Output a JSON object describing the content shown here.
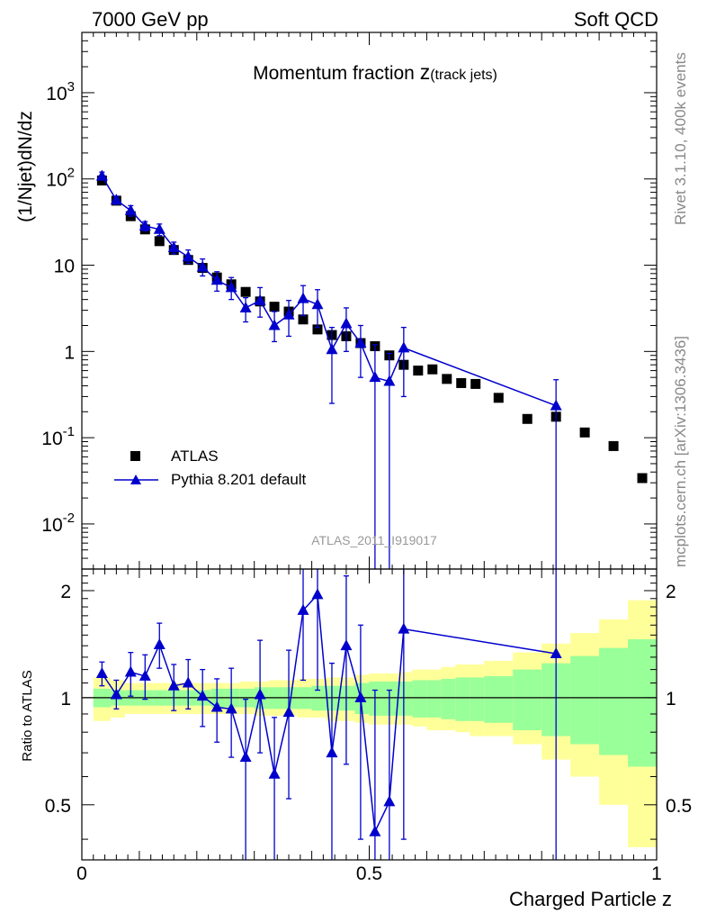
{
  "header": {
    "left": "7000 GeV pp",
    "right": "Soft QCD"
  },
  "side_text": {
    "rivet": "Rivet 3.1.10,  400k events",
    "mcplots": "mcplots.cern.ch [arXiv:1306.3436]"
  },
  "chart_data": [
    {
      "type": "scatter",
      "title_main": "Momentum fraction ",
      "title_z": "z",
      "title_sub": "(track jets)",
      "ylabel": "(1/Njet)dN/dz",
      "xlabel": "Charged Particle z",
      "analysis_id": "ATLAS_2011_I919017",
      "y_scale": "log",
      "xlim": [
        0,
        1
      ],
      "ylim": [
        0.003,
        5000
      ],
      "y_ticks": [
        {
          "value": 0.01,
          "base": "10",
          "exp": "-2"
        },
        {
          "value": 0.1,
          "base": "10",
          "exp": "-1"
        },
        {
          "value": 1,
          "base": "1",
          "exp": ""
        },
        {
          "value": 10,
          "base": "10",
          "exp": ""
        },
        {
          "value": 100,
          "base": "10",
          "exp": "2"
        },
        {
          "value": 1000,
          "base": "10",
          "exp": "3"
        }
      ],
      "x_ticks": [
        {
          "value": 0,
          "label": "0"
        },
        {
          "value": 0.5,
          "label": "0.5"
        },
        {
          "value": 1,
          "label": "1"
        }
      ],
      "legend": {
        "position": "bottom-left"
      },
      "series": [
        {
          "name": "ATLAS",
          "marker": "square",
          "color": "#000000",
          "x": [
            0.035,
            0.06,
            0.085,
            0.11,
            0.135,
            0.16,
            0.185,
            0.21,
            0.235,
            0.26,
            0.285,
            0.31,
            0.335,
            0.36,
            0.385,
            0.41,
            0.435,
            0.46,
            0.485,
            0.51,
            0.535,
            0.56,
            0.585,
            0.61,
            0.635,
            0.66,
            0.685,
            0.725,
            0.775,
            0.825,
            0.875,
            0.925,
            0.975
          ],
          "y": [
            96,
            56,
            37,
            26,
            19,
            15,
            11.5,
            9.3,
            7.2,
            6.0,
            4.9,
            3.8,
            3.3,
            2.9,
            2.35,
            1.8,
            1.55,
            1.5,
            1.25,
            1.15,
            0.9,
            0.7,
            0.6,
            0.62,
            0.48,
            0.43,
            0.42,
            0.29,
            0.165,
            0.175,
            0.115,
            0.08,
            0.034
          ]
        },
        {
          "name": "Pythia 8.201 default",
          "marker": "triangle",
          "color": "#0000cc",
          "x": [
            0.035,
            0.06,
            0.085,
            0.11,
            0.135,
            0.16,
            0.185,
            0.21,
            0.235,
            0.26,
            0.285,
            0.31,
            0.335,
            0.36,
            0.385,
            0.41,
            0.435,
            0.46,
            0.485,
            0.51,
            0.535,
            0.56,
            0.825
          ],
          "y": [
            108,
            57,
            43,
            28.5,
            26,
            16,
            12.5,
            9.5,
            6.7,
            5.5,
            3.2,
            3.9,
            2.0,
            2.65,
            4.1,
            3.5,
            1.05,
            2.1,
            1.25,
            0.5,
            0.45,
            1.1,
            0.235
          ],
          "y_lo": [
            97,
            51,
            37,
            25,
            22,
            13.5,
            10.5,
            7.5,
            5.0,
            4.0,
            2.2,
            2.5,
            1.3,
            1.5,
            2.6,
            1.9,
            0.25,
            1.0,
            0.5,
            0.001,
            0.001,
            0.3,
            0.001
          ],
          "y_hi": [
            120,
            63,
            49,
            32,
            30,
            18.5,
            15,
            11.8,
            8.4,
            7.2,
            4.2,
            5.5,
            2.9,
            3.9,
            5.8,
            5.2,
            1.9,
            3.2,
            2.0,
            1.2,
            0.95,
            1.9,
            0.47
          ]
        }
      ]
    },
    {
      "type": "scatter",
      "ylabel": "Ratio to ATLAS",
      "xlim": [
        0,
        1
      ],
      "ylim": [
        0.35,
        2.3
      ],
      "y_scale": "log",
      "reference_line": 1,
      "y_ticks": [
        {
          "value": 0.5,
          "label": "0.5"
        },
        {
          "value": 1,
          "label": "1"
        },
        {
          "value": 2,
          "label": "2"
        }
      ],
      "bands": {
        "edges": [
          0.02,
          0.05,
          0.075,
          0.1,
          0.125,
          0.15,
          0.175,
          0.2,
          0.225,
          0.25,
          0.275,
          0.3,
          0.325,
          0.35,
          0.375,
          0.4,
          0.425,
          0.45,
          0.475,
          0.5,
          0.525,
          0.55,
          0.575,
          0.6,
          0.625,
          0.65,
          0.675,
          0.7,
          0.75,
          0.8,
          0.85,
          0.9,
          0.95,
          1.0
        ],
        "inner_color": "#99ff99",
        "outer_color": "#ffff99",
        "inner_lo": [
          0.94,
          0.95,
          0.95,
          0.95,
          0.95,
          0.95,
          0.95,
          0.95,
          0.94,
          0.94,
          0.94,
          0.93,
          0.93,
          0.93,
          0.93,
          0.92,
          0.92,
          0.92,
          0.9,
          0.89,
          0.89,
          0.89,
          0.88,
          0.88,
          0.87,
          0.86,
          0.86,
          0.85,
          0.81,
          0.78,
          0.74,
          0.69,
          0.64
        ],
        "inner_hi": [
          1.06,
          1.05,
          1.05,
          1.05,
          1.05,
          1.05,
          1.05,
          1.05,
          1.06,
          1.06,
          1.06,
          1.07,
          1.07,
          1.07,
          1.07,
          1.08,
          1.08,
          1.08,
          1.1,
          1.11,
          1.11,
          1.11,
          1.12,
          1.12,
          1.13,
          1.14,
          1.14,
          1.15,
          1.2,
          1.25,
          1.31,
          1.38,
          1.46
        ],
        "outer_lo": [
          0.86,
          0.88,
          0.9,
          0.9,
          0.9,
          0.9,
          0.9,
          0.9,
          0.9,
          0.9,
          0.9,
          0.89,
          0.89,
          0.89,
          0.88,
          0.88,
          0.86,
          0.86,
          0.85,
          0.84,
          0.84,
          0.84,
          0.83,
          0.81,
          0.81,
          0.8,
          0.78,
          0.78,
          0.74,
          0.67,
          0.6,
          0.5,
          0.38
        ],
        "outer_hi": [
          1.14,
          1.12,
          1.1,
          1.1,
          1.1,
          1.1,
          1.1,
          1.1,
          1.1,
          1.1,
          1.11,
          1.11,
          1.12,
          1.12,
          1.13,
          1.13,
          1.14,
          1.14,
          1.16,
          1.17,
          1.17,
          1.18,
          1.2,
          1.2,
          1.22,
          1.24,
          1.24,
          1.27,
          1.34,
          1.42,
          1.52,
          1.66,
          1.88
        ]
      },
      "series": [
        {
          "name": "Pythia 8.201 default",
          "marker": "triangle",
          "color": "#0000cc",
          "x": [
            0.035,
            0.06,
            0.085,
            0.11,
            0.135,
            0.16,
            0.185,
            0.21,
            0.235,
            0.26,
            0.285,
            0.31,
            0.335,
            0.36,
            0.385,
            0.41,
            0.435,
            0.46,
            0.485,
            0.51,
            0.535,
            0.56,
            0.825
          ],
          "y": [
            1.17,
            1.02,
            1.18,
            1.15,
            1.41,
            1.08,
            1.1,
            1.01,
            0.94,
            0.93,
            0.68,
            1.02,
            0.61,
            0.91,
            1.76,
            1.95,
            0.7,
            1.4,
            1.0,
            0.42,
            0.51,
            1.56,
            1.33
          ],
          "y_lo": [
            1.08,
            0.93,
            1.01,
            0.99,
            1.21,
            0.92,
            0.93,
            0.83,
            0.75,
            0.68,
            0.35,
            0.7,
            0.34,
            0.52,
            1.12,
            1.05,
            0.1,
            0.65,
            0.4,
            0.1,
            0.1,
            0.4,
            0.1
          ],
          "y_hi": [
            1.26,
            1.12,
            1.34,
            1.32,
            1.62,
            1.24,
            1.28,
            1.2,
            1.13,
            1.21,
            0.99,
            1.45,
            0.88,
            1.36,
            2.4,
            2.9,
            1.25,
            2.2,
            1.6,
            1.05,
            1.05,
            2.5,
            2.5
          ]
        }
      ]
    }
  ]
}
